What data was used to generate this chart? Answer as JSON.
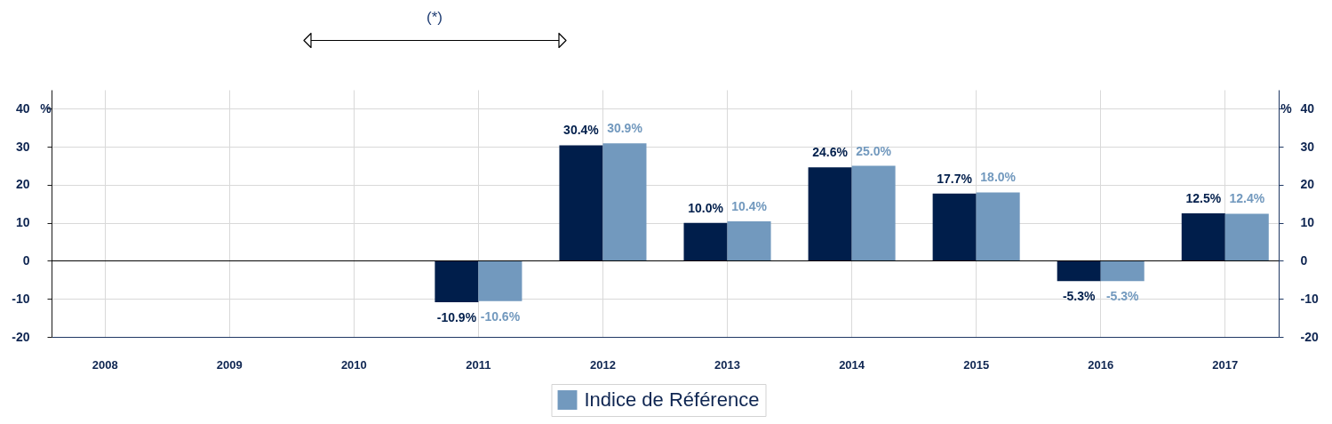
{
  "chart_data": {
    "type": "bar",
    "annotations": [
      "(*)"
    ],
    "ylabel": "%",
    "y2label": "%",
    "categories": [
      "2008",
      "2009",
      "2010",
      "2011",
      "2012",
      "2013",
      "2014",
      "2015",
      "2016",
      "2017"
    ],
    "series": [
      {
        "color": "#001e4b",
        "values": [
          null,
          null,
          null,
          -10.9,
          30.4,
          10.0,
          24.6,
          17.7,
          -5.3,
          12.5
        ],
        "value_labels": [
          null,
          null,
          null,
          "-10.9%",
          "30.4%",
          "10.0%",
          "24.6%",
          "17.7%",
          "-5.3%",
          "12.5%"
        ]
      },
      {
        "name": "Indice de Référence",
        "color": "#7299be",
        "values": [
          null,
          null,
          null,
          -10.6,
          30.9,
          10.4,
          25.0,
          18.0,
          -5.3,
          12.4
        ],
        "value_labels": [
          null,
          null,
          null,
          "-10.6%",
          "30.9%",
          "10.4%",
          "25.0%",
          "18.0%",
          "-5.3%",
          "12.4%"
        ]
      }
    ],
    "ylim": [
      -20,
      45
    ],
    "yticks": [
      -20,
      -10,
      0,
      10,
      20,
      30,
      40
    ],
    "y2lim": [
      -20,
      45
    ],
    "y2ticks": [
      -20,
      -10,
      0,
      10,
      20,
      30,
      40
    ],
    "grid": true,
    "legend": "bottom",
    "ref_lines": [
      {
        "axis": "y",
        "value": 0,
        "color": "#000000"
      }
    ]
  }
}
